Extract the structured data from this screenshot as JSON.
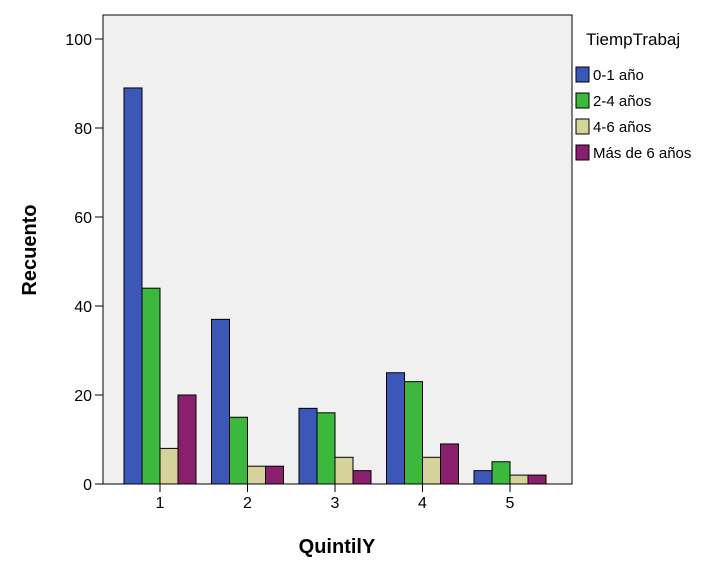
{
  "chart_data": {
    "type": "bar",
    "title": "",
    "xlabel": "QuintilY",
    "ylabel": "Recuento",
    "categories": [
      "1",
      "2",
      "3",
      "4",
      "5"
    ],
    "ylim": [
      0,
      100
    ],
    "yticks": [
      0,
      20,
      40,
      60,
      80,
      100
    ],
    "grid": false,
    "legend_title": "TiempTrabaj",
    "legend_position": "right",
    "series": [
      {
        "name": "0-1 año",
        "color": "#3b57b7",
        "values": [
          89,
          37,
          17,
          25,
          3
        ]
      },
      {
        "name": "2-4 años",
        "color": "#3cb83c",
        "values": [
          44,
          15,
          16,
          23,
          5
        ]
      },
      {
        "name": "4-6 años",
        "color": "#d6d39a",
        "values": [
          8,
          4,
          6,
          6,
          2
        ]
      },
      {
        "name": "Más de 6 años",
        "color": "#8a1f6e",
        "values": [
          20,
          4,
          3,
          9,
          2
        ]
      }
    ]
  }
}
